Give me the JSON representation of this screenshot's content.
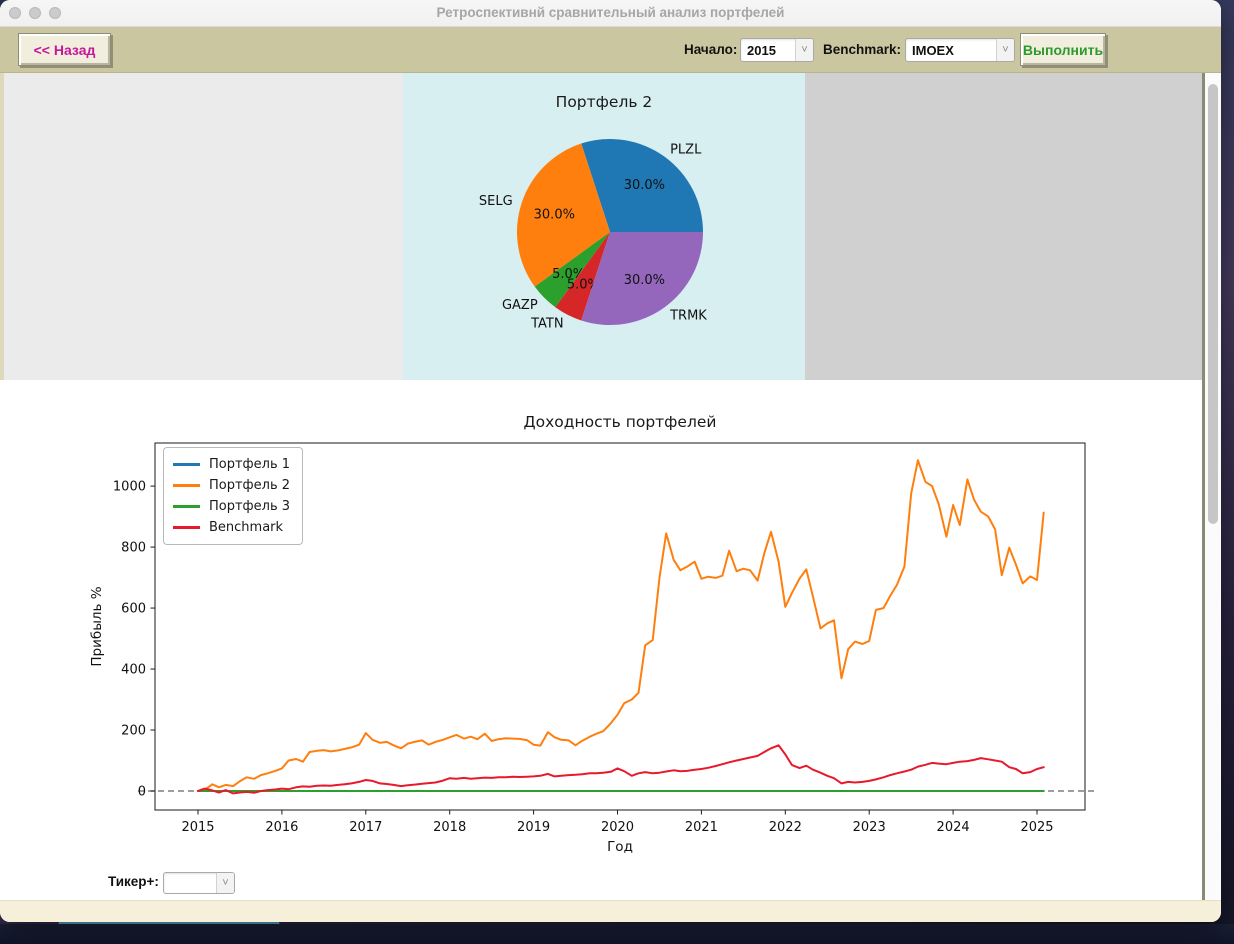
{
  "window": {
    "title": "Ретроспективнй сравнительный анализ портфелей"
  },
  "icons": {
    "chevron_down": "˅"
  },
  "toolbar": {
    "back_button": "<< Назад",
    "start_label": "Начало:",
    "start_value": "2015",
    "benchmark_label": "Benchmark:",
    "benchmark_value": "IMOEX",
    "run_button": "Выполнить",
    "back_text_color": "#c4179c",
    "run_text_color": "#2c9a2c",
    "toolbar_color": "#cac7a0"
  },
  "pie": {
    "title": "Портфель 2",
    "background": "#d8eff2",
    "start_angle_deg": 0,
    "direction": "counterclockwise",
    "slices": [
      {
        "label": "PLZL",
        "value": 30.0,
        "pct_label": "30.0%",
        "color": "#1f77b4"
      },
      {
        "label": "SELG",
        "value": 30.0,
        "pct_label": "30.0%",
        "color": "#ff7f0e"
      },
      {
        "label": "GAZP",
        "value": 5.0,
        "pct_label": "5.0%",
        "color": "#2ca02c"
      },
      {
        "label": "TATN",
        "value": 5.0,
        "pct_label": "5.0%",
        "color": "#d62728"
      },
      {
        "label": "TRMK",
        "value": 30.0,
        "pct_label": "30.0%",
        "color": "#9467bd"
      }
    ]
  },
  "chart_data": {
    "type": "line",
    "title": "Доходность портфелей",
    "xlabel": "Год",
    "ylabel": "Прибыль %",
    "xlim": [
      2014.49,
      2025.57
    ],
    "ylim": [
      -62,
      1141
    ],
    "xticks": [
      2015,
      2016,
      2017,
      2018,
      2019,
      2020,
      2021,
      2022,
      2023,
      2024,
      2025
    ],
    "yticks": [
      0,
      200,
      400,
      600,
      800,
      1000
    ],
    "grid": false,
    "legend_position": "upper left",
    "zero_line": {
      "y": 0,
      "style": "dashed",
      "color": "#7f7f7f"
    },
    "series": [
      {
        "name": "Портфель 1",
        "color": "#1f77b4",
        "points": [
          [
            2015.0,
            0
          ],
          [
            2017.5,
            0
          ],
          [
            2020.0,
            0
          ],
          [
            2022.5,
            0
          ],
          [
            2025.08,
            0
          ]
        ]
      },
      {
        "name": "Портфель 2",
        "color": "#ff7f0e",
        "points": [
          [
            2015.0,
            0
          ],
          [
            2015.08,
            4
          ],
          [
            2015.17,
            22
          ],
          [
            2015.25,
            12
          ],
          [
            2015.33,
            20
          ],
          [
            2015.42,
            16
          ],
          [
            2015.5,
            32
          ],
          [
            2015.58,
            45
          ],
          [
            2015.67,
            40
          ],
          [
            2015.75,
            52
          ],
          [
            2015.83,
            58
          ],
          [
            2015.92,
            66
          ],
          [
            2016.0,
            74
          ],
          [
            2016.08,
            100
          ],
          [
            2016.17,
            105
          ],
          [
            2016.25,
            96
          ],
          [
            2016.33,
            128
          ],
          [
            2016.42,
            132
          ],
          [
            2016.5,
            134
          ],
          [
            2016.58,
            130
          ],
          [
            2016.67,
            133
          ],
          [
            2016.75,
            138
          ],
          [
            2016.83,
            143
          ],
          [
            2016.92,
            152
          ],
          [
            2017.0,
            190
          ],
          [
            2017.08,
            168
          ],
          [
            2017.17,
            158
          ],
          [
            2017.25,
            161
          ],
          [
            2017.33,
            150
          ],
          [
            2017.42,
            140
          ],
          [
            2017.5,
            155
          ],
          [
            2017.58,
            161
          ],
          [
            2017.67,
            166
          ],
          [
            2017.75,
            152
          ],
          [
            2017.83,
            161
          ],
          [
            2017.92,
            168
          ],
          [
            2018.0,
            176
          ],
          [
            2018.08,
            184
          ],
          [
            2018.17,
            172
          ],
          [
            2018.25,
            178
          ],
          [
            2018.33,
            170
          ],
          [
            2018.42,
            188
          ],
          [
            2018.5,
            164
          ],
          [
            2018.58,
            170
          ],
          [
            2018.67,
            173
          ],
          [
            2018.75,
            172
          ],
          [
            2018.83,
            171
          ],
          [
            2018.92,
            167
          ],
          [
            2019.0,
            152
          ],
          [
            2019.08,
            149
          ],
          [
            2019.17,
            193
          ],
          [
            2019.25,
            176
          ],
          [
            2019.33,
            168
          ],
          [
            2019.42,
            166
          ],
          [
            2019.5,
            150
          ],
          [
            2019.58,
            165
          ],
          [
            2019.67,
            178
          ],
          [
            2019.75,
            188
          ],
          [
            2019.83,
            196
          ],
          [
            2019.92,
            222
          ],
          [
            2020.0,
            250
          ],
          [
            2020.08,
            288
          ],
          [
            2020.17,
            300
          ],
          [
            2020.25,
            322
          ],
          [
            2020.33,
            478
          ],
          [
            2020.42,
            495
          ],
          [
            2020.5,
            700
          ],
          [
            2020.58,
            845
          ],
          [
            2020.67,
            758
          ],
          [
            2020.75,
            724
          ],
          [
            2020.83,
            736
          ],
          [
            2020.92,
            752
          ],
          [
            2021.0,
            696
          ],
          [
            2021.08,
            703
          ],
          [
            2021.17,
            699
          ],
          [
            2021.25,
            706
          ],
          [
            2021.33,
            788
          ],
          [
            2021.42,
            721
          ],
          [
            2021.5,
            729
          ],
          [
            2021.58,
            724
          ],
          [
            2021.67,
            690
          ],
          [
            2021.75,
            780
          ],
          [
            2021.83,
            850
          ],
          [
            2021.92,
            752
          ],
          [
            2022.0,
            604
          ],
          [
            2022.08,
            650
          ],
          [
            2022.17,
            697
          ],
          [
            2022.25,
            727
          ],
          [
            2022.33,
            637
          ],
          [
            2022.42,
            533
          ],
          [
            2022.5,
            550
          ],
          [
            2022.58,
            560
          ],
          [
            2022.67,
            370
          ],
          [
            2022.75,
            465
          ],
          [
            2022.83,
            490
          ],
          [
            2022.92,
            482
          ],
          [
            2023.0,
            492
          ],
          [
            2023.08,
            594
          ],
          [
            2023.17,
            600
          ],
          [
            2023.25,
            640
          ],
          [
            2023.33,
            676
          ],
          [
            2023.42,
            736
          ],
          [
            2023.5,
            976
          ],
          [
            2023.58,
            1085
          ],
          [
            2023.67,
            1014
          ],
          [
            2023.75,
            1000
          ],
          [
            2023.83,
            940
          ],
          [
            2023.92,
            834
          ],
          [
            2024.0,
            938
          ],
          [
            2024.08,
            872
          ],
          [
            2024.17,
            1022
          ],
          [
            2024.25,
            955
          ],
          [
            2024.33,
            916
          ],
          [
            2024.42,
            900
          ],
          [
            2024.5,
            858
          ],
          [
            2024.58,
            708
          ],
          [
            2024.67,
            798
          ],
          [
            2024.75,
            742
          ],
          [
            2024.83,
            681
          ],
          [
            2024.92,
            704
          ],
          [
            2025.0,
            692
          ],
          [
            2025.08,
            913
          ]
        ]
      },
      {
        "name": "Портфель 3",
        "color": "#2ca02c",
        "points": [
          [
            2015.0,
            0
          ],
          [
            2017.5,
            0
          ],
          [
            2020.0,
            0
          ],
          [
            2022.5,
            0
          ],
          [
            2025.08,
            0
          ]
        ]
      },
      {
        "name": "Benchmark",
        "color": "#e8192c",
        "points": [
          [
            2015.0,
            0
          ],
          [
            2015.08,
            8
          ],
          [
            2015.17,
            2
          ],
          [
            2015.25,
            -5
          ],
          [
            2015.33,
            3
          ],
          [
            2015.42,
            -8
          ],
          [
            2015.5,
            -5
          ],
          [
            2015.58,
            -3
          ],
          [
            2015.67,
            -6
          ],
          [
            2015.75,
            0
          ],
          [
            2015.83,
            3
          ],
          [
            2015.92,
            5
          ],
          [
            2016.0,
            8
          ],
          [
            2016.08,
            6
          ],
          [
            2016.17,
            12
          ],
          [
            2016.25,
            15
          ],
          [
            2016.33,
            14
          ],
          [
            2016.42,
            17
          ],
          [
            2016.5,
            18
          ],
          [
            2016.58,
            17
          ],
          [
            2016.67,
            20
          ],
          [
            2016.75,
            22
          ],
          [
            2016.83,
            25
          ],
          [
            2016.92,
            30
          ],
          [
            2017.0,
            36
          ],
          [
            2017.08,
            33
          ],
          [
            2017.17,
            25
          ],
          [
            2017.25,
            23
          ],
          [
            2017.33,
            20
          ],
          [
            2017.42,
            16
          ],
          [
            2017.5,
            19
          ],
          [
            2017.58,
            21
          ],
          [
            2017.67,
            24
          ],
          [
            2017.75,
            26
          ],
          [
            2017.83,
            28
          ],
          [
            2017.92,
            34
          ],
          [
            2018.0,
            42
          ],
          [
            2018.08,
            40
          ],
          [
            2018.17,
            43
          ],
          [
            2018.25,
            40
          ],
          [
            2018.33,
            42
          ],
          [
            2018.42,
            44
          ],
          [
            2018.5,
            43
          ],
          [
            2018.58,
            45
          ],
          [
            2018.67,
            45
          ],
          [
            2018.75,
            47
          ],
          [
            2018.83,
            46
          ],
          [
            2018.92,
            47
          ],
          [
            2019.0,
            48
          ],
          [
            2019.08,
            50
          ],
          [
            2019.17,
            56
          ],
          [
            2019.25,
            48
          ],
          [
            2019.33,
            50
          ],
          [
            2019.42,
            52
          ],
          [
            2019.5,
            53
          ],
          [
            2019.58,
            55
          ],
          [
            2019.67,
            58
          ],
          [
            2019.75,
            58
          ],
          [
            2019.83,
            60
          ],
          [
            2019.92,
            63
          ],
          [
            2020.0,
            74
          ],
          [
            2020.08,
            65
          ],
          [
            2020.17,
            50
          ],
          [
            2020.25,
            58
          ],
          [
            2020.33,
            62
          ],
          [
            2020.42,
            58
          ],
          [
            2020.5,
            60
          ],
          [
            2020.58,
            64
          ],
          [
            2020.67,
            68
          ],
          [
            2020.75,
            65
          ],
          [
            2020.83,
            66
          ],
          [
            2020.92,
            70
          ],
          [
            2021.0,
            72
          ],
          [
            2021.08,
            76
          ],
          [
            2021.17,
            82
          ],
          [
            2021.25,
            88
          ],
          [
            2021.33,
            94
          ],
          [
            2021.42,
            100
          ],
          [
            2021.5,
            105
          ],
          [
            2021.58,
            110
          ],
          [
            2021.67,
            115
          ],
          [
            2021.75,
            128
          ],
          [
            2021.83,
            140
          ],
          [
            2021.92,
            150
          ],
          [
            2022.0,
            120
          ],
          [
            2022.08,
            85
          ],
          [
            2022.17,
            75
          ],
          [
            2022.25,
            83
          ],
          [
            2022.33,
            70
          ],
          [
            2022.42,
            60
          ],
          [
            2022.5,
            50
          ],
          [
            2022.58,
            42
          ],
          [
            2022.67,
            25
          ],
          [
            2022.75,
            30
          ],
          [
            2022.83,
            28
          ],
          [
            2022.92,
            30
          ],
          [
            2023.0,
            33
          ],
          [
            2023.08,
            38
          ],
          [
            2023.17,
            45
          ],
          [
            2023.25,
            52
          ],
          [
            2023.33,
            58
          ],
          [
            2023.42,
            64
          ],
          [
            2023.5,
            70
          ],
          [
            2023.58,
            80
          ],
          [
            2023.67,
            86
          ],
          [
            2023.75,
            92
          ],
          [
            2023.83,
            90
          ],
          [
            2023.92,
            88
          ],
          [
            2024.0,
            92
          ],
          [
            2024.08,
            96
          ],
          [
            2024.17,
            98
          ],
          [
            2024.25,
            102
          ],
          [
            2024.33,
            108
          ],
          [
            2024.42,
            104
          ],
          [
            2024.5,
            100
          ],
          [
            2024.58,
            96
          ],
          [
            2024.67,
            78
          ],
          [
            2024.75,
            72
          ],
          [
            2024.83,
            58
          ],
          [
            2024.92,
            62
          ],
          [
            2025.0,
            72
          ],
          [
            2025.08,
            78
          ]
        ]
      }
    ]
  },
  "ticker": {
    "label": "Тикер+:",
    "value": ""
  }
}
